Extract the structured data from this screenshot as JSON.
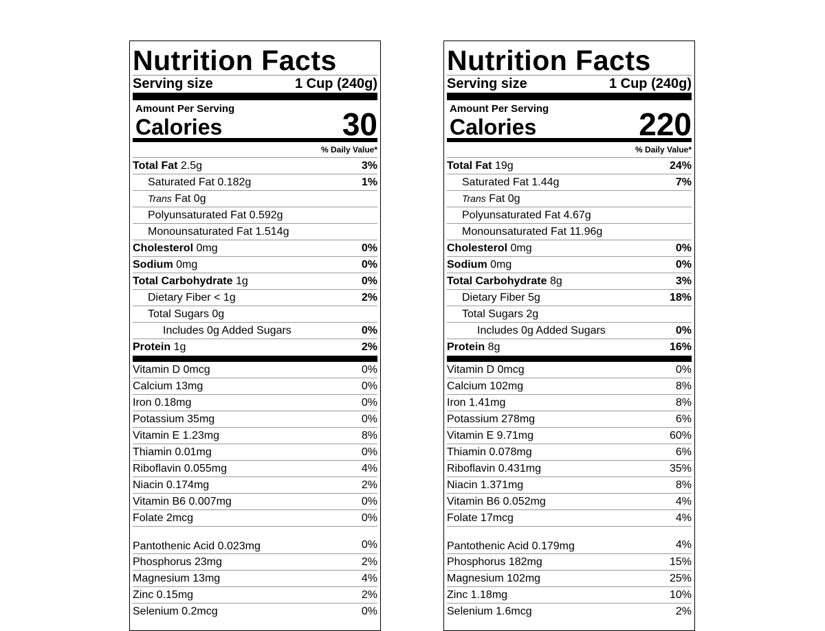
{
  "labels": [
    {
      "title": "Nutrition Facts",
      "serving_label": "Serving size",
      "serving_value": "1 Cup (240g)",
      "amount_per_serving": "Amount Per Serving",
      "calories_label": "Calories",
      "calories_value": "30",
      "daily_value_header": "% Daily Value*",
      "total_fat": {
        "label": "Total Fat",
        "amount": " 2.5g",
        "pct": "3%"
      },
      "saturated_fat": {
        "label": "Saturated Fat 0.182g",
        "pct": "1%"
      },
      "trans_fat": {
        "italic": "Trans",
        "label": " Fat 0g"
      },
      "poly_fat": {
        "label": "Polyunsaturated Fat 0.592g"
      },
      "mono_fat": {
        "label": "Monounsaturated Fat 1.514g"
      },
      "cholesterol": {
        "label": "Cholesterol",
        "amount": " 0mg",
        "pct": "0%"
      },
      "sodium": {
        "label": "Sodium",
        "amount": " 0mg",
        "pct": "0%"
      },
      "total_carb": {
        "label": "Total Carbohydrate",
        "amount": " 1g",
        "pct": "0%"
      },
      "fiber": {
        "label": "Dietary Fiber < 1g",
        "pct": "2%"
      },
      "sugars": {
        "label": "Total Sugars 0g"
      },
      "added_sugars": {
        "label": "Includes 0g Added Sugars",
        "pct": "0%"
      },
      "protein": {
        "label": "Protein",
        "amount": " 1g",
        "pct": "2%"
      },
      "micros": [
        {
          "label": "Vitamin D 0mcg",
          "pct": "0%"
        },
        {
          "label": "Calcium 13mg",
          "pct": "0%"
        },
        {
          "label": "Iron 0.18mg",
          "pct": "0%"
        },
        {
          "label": "Potassium 35mg",
          "pct": "0%"
        },
        {
          "label": "Vitamin E 1.23mg",
          "pct": "8%"
        },
        {
          "label": "Thiamin 0.01mg",
          "pct": "0%"
        },
        {
          "label": "Riboflavin 0.055mg",
          "pct": "4%"
        },
        {
          "label": "Niacin 0.174mg",
          "pct": "2%"
        },
        {
          "label": "Vitamin B6 0.007mg",
          "pct": "0%"
        },
        {
          "label": "Folate 2mcg",
          "pct": "0%"
        },
        {
          "label": "Pantothenic Acid 0.023mg",
          "pct": "0%"
        },
        {
          "label": "Phosphorus 23mg",
          "pct": "2%"
        },
        {
          "label": "Magnesium 13mg",
          "pct": "4%"
        },
        {
          "label": "Zinc 0.15mg",
          "pct": "2%"
        },
        {
          "label": "Selenium 0.2mcg",
          "pct": "0%"
        }
      ]
    },
    {
      "title": "Nutrition Facts",
      "serving_label": "Serving size",
      "serving_value": "1 Cup (240g)",
      "amount_per_serving": "Amount Per Serving",
      "calories_label": "Calories",
      "calories_value": "220",
      "daily_value_header": "% Daily Value*",
      "total_fat": {
        "label": "Total Fat",
        "amount": " 19g",
        "pct": "24%"
      },
      "saturated_fat": {
        "label": "Saturated Fat 1.44g",
        "pct": "7%"
      },
      "trans_fat": {
        "italic": "Trans",
        "label": " Fat 0g"
      },
      "poly_fat": {
        "label": "Polyunsaturated Fat 4.67g"
      },
      "mono_fat": {
        "label": "Monounsaturated Fat 11.96g"
      },
      "cholesterol": {
        "label": "Cholesterol",
        "amount": " 0mg",
        "pct": "0%"
      },
      "sodium": {
        "label": "Sodium",
        "amount": " 0mg",
        "pct": "0%"
      },
      "total_carb": {
        "label": "Total Carbohydrate",
        "amount": " 8g",
        "pct": "3%"
      },
      "fiber": {
        "label": "Dietary Fiber 5g",
        "pct": "18%"
      },
      "sugars": {
        "label": "Total Sugars 2g"
      },
      "added_sugars": {
        "label": "Includes 0g Added Sugars",
        "pct": "0%"
      },
      "protein": {
        "label": "Protein",
        "amount": " 8g",
        "pct": "16%"
      },
      "micros": [
        {
          "label": "Vitamin D 0mcg",
          "pct": "0%"
        },
        {
          "label": "Calcium 102mg",
          "pct": "8%"
        },
        {
          "label": "Iron 1.41mg",
          "pct": "8%"
        },
        {
          "label": "Potassium 278mg",
          "pct": "6%"
        },
        {
          "label": "Vitamin E 9.71mg",
          "pct": "60%"
        },
        {
          "label": "Thiamin 0.078mg",
          "pct": "6%"
        },
        {
          "label": "Riboflavin 0.431mg",
          "pct": "35%"
        },
        {
          "label": "Niacin 1.371mg",
          "pct": "8%"
        },
        {
          "label": "Vitamin B6 0.052mg",
          "pct": "4%"
        },
        {
          "label": "Folate 17mcg",
          "pct": "4%"
        },
        {
          "label": "Pantothenic Acid 0.179mg",
          "pct": "4%"
        },
        {
          "label": "Phosphorus 182mg",
          "pct": "15%"
        },
        {
          "label": "Magnesium 102mg",
          "pct": "25%"
        },
        {
          "label": "Zinc 1.18mg",
          "pct": "10%"
        },
        {
          "label": "Selenium 1.6mcg",
          "pct": "2%"
        }
      ]
    }
  ]
}
